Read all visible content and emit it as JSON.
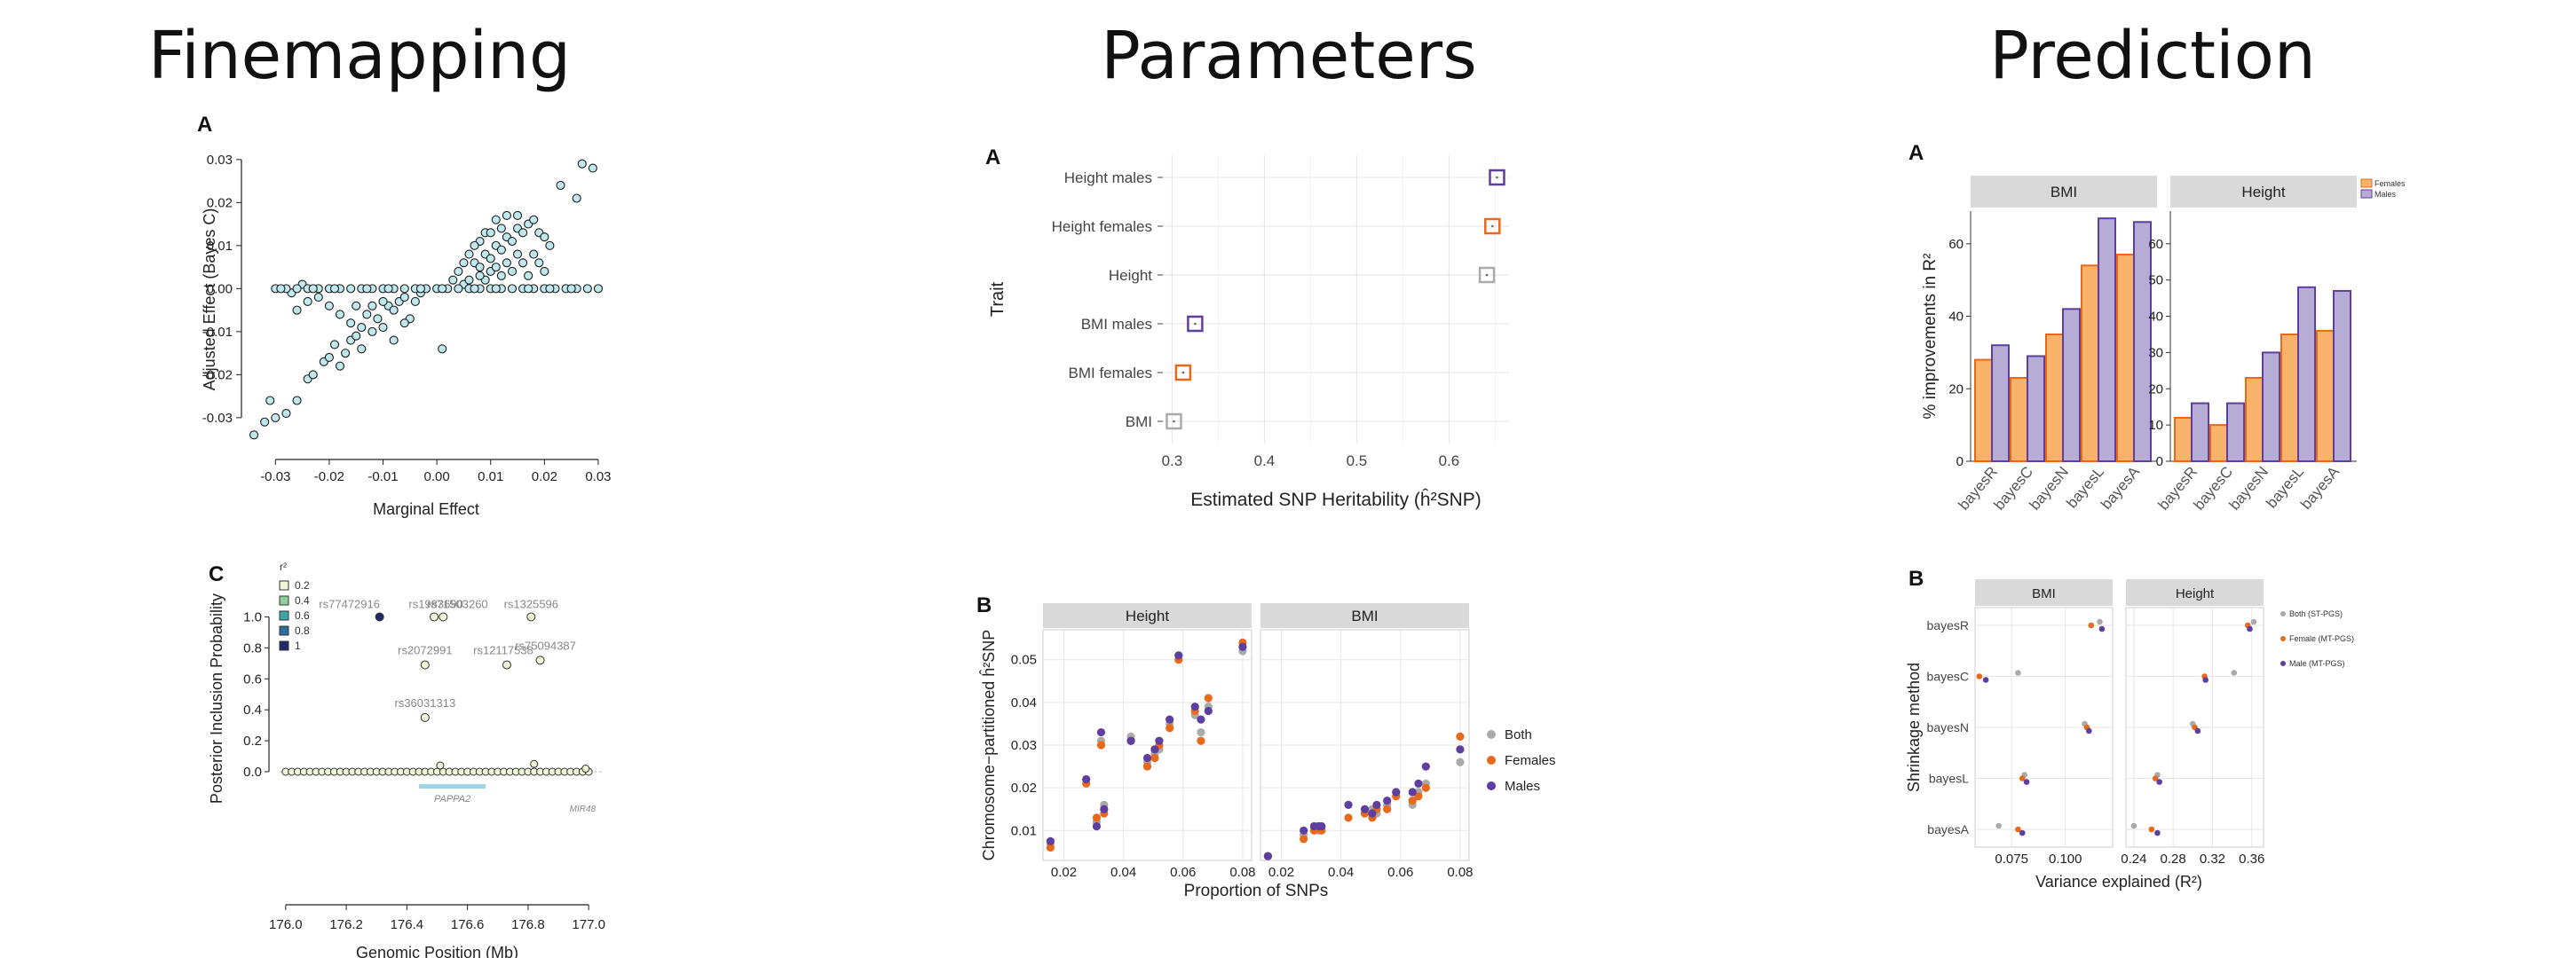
{
  "sections": {
    "finemapping": "Finemapping",
    "parameters": "Parameters",
    "prediction": "Prediction"
  },
  "colors": {
    "both": "#aaaaaa",
    "females": "#e8691a",
    "males": "#5e3e9e",
    "female_fill": "#f9b26a",
    "male_fill": "#b7acd6",
    "strip": "#d9d9d9",
    "grid": "#e6e6e6",
    "scatter_fill": "#bfe9ef",
    "gene": "#9fd4e6"
  },
  "chart_data": [
    {
      "id": "fm_a",
      "type": "scatter",
      "panel": "A",
      "xlabel": "Marginal Effect",
      "ylabel": "Adjusted Effect (Bayes C)",
      "xlim": [
        -0.035,
        0.031
      ],
      "ylim": [
        -0.036,
        0.031
      ],
      "xticks": [
        "-0.03",
        "-0.02",
        "-0.01",
        "0.00",
        "0.01",
        "0.02",
        "0.03"
      ],
      "yticks": [
        "-0.03",
        "-0.02",
        "-0.01",
        "0.00",
        "0.01",
        "0.02",
        "0.03"
      ],
      "points": [
        [
          -0.034,
          -0.034
        ],
        [
          -0.032,
          -0.031
        ],
        [
          -0.031,
          -0.026
        ],
        [
          -0.03,
          -0.03
        ],
        [
          -0.028,
          -0.029
        ],
        [
          -0.026,
          -0.026
        ],
        [
          -0.024,
          -0.021
        ],
        [
          -0.023,
          -0.02
        ],
        [
          -0.021,
          -0.017
        ],
        [
          -0.02,
          -0.016
        ],
        [
          -0.019,
          -0.013
        ],
        [
          -0.018,
          -0.018
        ],
        [
          -0.017,
          -0.015
        ],
        [
          -0.016,
          -0.012
        ],
        [
          -0.015,
          -0.011
        ],
        [
          -0.014,
          -0.009
        ],
        [
          -0.013,
          -0.006
        ],
        [
          -0.012,
          -0.01
        ],
        [
          -0.011,
          -0.007
        ],
        [
          -0.01,
          -0.009
        ],
        [
          -0.009,
          -0.004
        ],
        [
          -0.008,
          -0.005
        ],
        [
          -0.007,
          -0.003
        ],
        [
          -0.006,
          -0.002
        ],
        [
          -0.005,
          -0.007
        ],
        [
          -0.004,
          -0.003
        ],
        [
          -0.003,
          -0.001
        ],
        [
          -0.008,
          -0.012
        ],
        [
          -0.01,
          -0.003
        ],
        [
          -0.006,
          -0.008
        ],
        [
          -0.012,
          -0.004
        ],
        [
          -0.014,
          -0.014
        ],
        [
          -0.016,
          -0.008
        ],
        [
          -0.02,
          -0.004
        ],
        [
          -0.022,
          -0.002
        ],
        [
          -0.024,
          -0.003
        ],
        [
          -0.018,
          -0.006
        ],
        [
          -0.026,
          -0.005
        ],
        [
          -0.025,
          0.001
        ],
        [
          -0.027,
          -0.001
        ],
        [
          -0.015,
          -0.004
        ],
        [
          0.001,
          -0.014
        ],
        [
          0.004,
          0.004
        ],
        [
          0.005,
          0.001
        ],
        [
          0.006,
          0.002
        ],
        [
          0.007,
          0.006
        ],
        [
          0.008,
          0.005
        ],
        [
          0.009,
          0.008
        ],
        [
          0.01,
          0.007
        ],
        [
          0.011,
          0.01
        ],
        [
          0.012,
          0.009
        ],
        [
          0.013,
          0.012
        ],
        [
          0.014,
          0.011
        ],
        [
          0.015,
          0.014
        ],
        [
          0.016,
          0.013
        ],
        [
          0.017,
          0.015
        ],
        [
          0.018,
          0.016
        ],
        [
          0.019,
          0.013
        ],
        [
          0.02,
          0.012
        ],
        [
          0.021,
          0.01
        ],
        [
          0.023,
          0.024
        ],
        [
          0.026,
          0.021
        ],
        [
          0.027,
          0.029
        ],
        [
          0.029,
          0.028
        ],
        [
          0.006,
          0.008
        ],
        [
          0.008,
          0.011
        ],
        [
          0.009,
          0.013
        ],
        [
          0.01,
          0.004
        ],
        [
          0.011,
          0.016
        ],
        [
          0.012,
          0.003
        ],
        [
          0.013,
          0.006
        ],
        [
          0.014,
          0.004
        ],
        [
          0.01,
          0.013
        ],
        [
          0.007,
          0.01
        ],
        [
          0.009,
          0.002
        ],
        [
          0.012,
          0.014
        ],
        [
          0.015,
          0.008
        ],
        [
          0.016,
          0.006
        ],
        [
          0.011,
          0.005
        ],
        [
          0.008,
          0.003
        ],
        [
          0.005,
          0.006
        ],
        [
          0.003,
          0.002
        ],
        [
          0.013,
          0.017
        ],
        [
          0.015,
          0.017
        ],
        [
          0.018,
          0.008
        ],
        [
          0.017,
          0.003
        ],
        [
          0.019,
          0.006
        ],
        [
          0.02,
          0.004
        ],
        [
          -0.03,
          0.0
        ],
        [
          -0.028,
          0.0
        ],
        [
          -0.026,
          0.0
        ],
        [
          -0.024,
          0.0
        ],
        [
          -0.022,
          0.0
        ],
        [
          -0.02,
          0.0
        ],
        [
          -0.018,
          0.0
        ],
        [
          -0.016,
          0.0
        ],
        [
          -0.014,
          0.0
        ],
        [
          -0.012,
          0.0
        ],
        [
          -0.01,
          0.0
        ],
        [
          -0.008,
          0.0
        ],
        [
          -0.006,
          0.0
        ],
        [
          -0.004,
          0.0
        ],
        [
          -0.002,
          0.0
        ],
        [
          0.0,
          0.0
        ],
        [
          0.002,
          0.0
        ],
        [
          0.004,
          0.0
        ],
        [
          0.006,
          0.0
        ],
        [
          0.008,
          0.0
        ],
        [
          0.01,
          0.0
        ],
        [
          0.012,
          0.0
        ],
        [
          0.014,
          0.0
        ],
        [
          0.016,
          0.0
        ],
        [
          0.018,
          0.0
        ],
        [
          0.02,
          0.0
        ],
        [
          0.022,
          0.0
        ],
        [
          0.024,
          0.0
        ],
        [
          0.026,
          0.0
        ],
        [
          0.028,
          0.0
        ],
        [
          0.03,
          0.0
        ],
        [
          -0.029,
          0.0
        ],
        [
          -0.019,
          0.0
        ],
        [
          -0.009,
          0.0
        ],
        [
          0.001,
          0.0
        ],
        [
          0.011,
          0.0
        ],
        [
          0.021,
          0.0
        ],
        [
          0.025,
          0.0
        ],
        [
          -0.023,
          0.0
        ],
        [
          -0.013,
          0.0
        ],
        [
          -0.003,
          0.0
        ],
        [
          0.007,
          0.0
        ],
        [
          0.017,
          0.0
        ]
      ]
    },
    {
      "id": "fm_c",
      "type": "scatter",
      "panel": "C",
      "xlabel": "Genomic Position (Mb)",
      "ylabel": "Posterior Inclusion Probability",
      "xlim": [
        175.98,
        177.02
      ],
      "ylim": [
        0,
        1.06
      ],
      "xticks": [
        "176.0",
        "176.2",
        "176.4",
        "176.6",
        "176.8",
        "177.0"
      ],
      "yticks": [
        "0.0",
        "0.2",
        "0.4",
        "0.6",
        "0.8",
        "1.0"
      ],
      "legend_title": "r²",
      "legend": [
        "0.2",
        "0.4",
        "0.6",
        "0.8",
        "1"
      ],
      "legend_colors": [
        "#eef6d5",
        "#8fcf9c",
        "#3fa6a8",
        "#2c6e9b",
        "#1f2a66"
      ],
      "gene_label": "PAPPA2",
      "gene_range": [
        176.44,
        176.66
      ],
      "other_gene": "MIR48",
      "labelled": [
        {
          "label": "rs77472916",
          "x": 176.31,
          "y": 1.0,
          "c": 4
        },
        {
          "label": "rs1983690",
          "x": 176.49,
          "y": 1.0,
          "c": 0
        },
        {
          "label": "rs71503260",
          "x": 176.52,
          "y": 1.0,
          "c": 0
        },
        {
          "label": "rs1325596",
          "x": 176.81,
          "y": 1.0,
          "c": 0
        },
        {
          "label": "rs2072991",
          "x": 176.46,
          "y": 0.69,
          "c": 0
        },
        {
          "label": "rs12117538",
          "x": 176.73,
          "y": 0.69,
          "c": 0
        },
        {
          "label": "rs75094387",
          "x": 176.84,
          "y": 0.72,
          "c": 0
        },
        {
          "label": "rs36031313",
          "x": 176.46,
          "y": 0.35,
          "c": 0
        }
      ],
      "baseline_x": [
        176.0,
        176.02,
        176.04,
        176.06,
        176.08,
        176.1,
        176.12,
        176.14,
        176.16,
        176.18,
        176.2,
        176.22,
        176.24,
        176.26,
        176.28,
        176.3,
        176.32,
        176.34,
        176.36,
        176.38,
        176.4,
        176.42,
        176.44,
        176.46,
        176.48,
        176.5,
        176.52,
        176.54,
        176.56,
        176.58,
        176.6,
        176.62,
        176.64,
        176.66,
        176.68,
        176.7,
        176.72,
        176.74,
        176.76,
        176.78,
        176.8,
        176.82,
        176.84,
        176.86,
        176.88,
        176.9,
        176.92,
        176.94,
        176.96,
        176.98,
        177.0
      ],
      "small_bumps": [
        [
          176.51,
          0.04
        ],
        [
          176.82,
          0.05
        ],
        [
          176.99,
          0.02
        ]
      ]
    },
    {
      "id": "par_a",
      "type": "scatter",
      "panel": "A",
      "xlabel": "Estimated SNP Heritability (ĥ²SNP)",
      "ylabel": "Trait",
      "xlim": [
        0.29,
        0.665
      ],
      "xticks": [
        "0.3",
        "0.4",
        "0.5",
        "0.6"
      ],
      "xtick_values": [
        0.3,
        0.4,
        0.5,
        0.6
      ],
      "categories": [
        "Height males",
        "Height females",
        "Height",
        "BMI males",
        "BMI females",
        "BMI"
      ],
      "values": [
        0.652,
        0.647,
        0.641,
        0.325,
        0.312,
        0.302
      ],
      "point_color": [
        "males",
        "females",
        "both",
        "males",
        "females",
        "both"
      ]
    },
    {
      "id": "par_b",
      "type": "scatter",
      "panel": "B",
      "xlabel": "Proportion of SNPs",
      "ylabel": "Chromosome−partitioned ĥ²SNP",
      "facets": [
        "Height",
        "BMI"
      ],
      "xlim": [
        0.013,
        0.083
      ],
      "ylim": [
        0.003,
        0.057
      ],
      "xticks": [
        "0.02",
        "0.04",
        "0.06",
        "0.08"
      ],
      "yticks": [
        "0.01",
        "0.02",
        "0.03",
        "0.04",
        "0.05"
      ],
      "legend": [
        "Both",
        "Females",
        "Males"
      ],
      "x": [
        0.0155,
        0.0275,
        0.031,
        0.0325,
        0.0335,
        0.0425,
        0.048,
        0.0505,
        0.052,
        0.0555,
        0.0585,
        0.064,
        0.066,
        0.0685,
        0.08
      ],
      "height": {
        "both": [
          0.007,
          0.022,
          0.012,
          0.031,
          0.016,
          0.032,
          0.026,
          0.028,
          0.029,
          0.035,
          0.051,
          0.037,
          0.033,
          0.039,
          0.052
        ],
        "females": [
          0.006,
          0.021,
          0.013,
          0.03,
          0.014,
          0.031,
          0.025,
          0.027,
          0.03,
          0.034,
          0.05,
          0.038,
          0.031,
          0.041,
          0.054
        ],
        "males": [
          0.0075,
          0.022,
          0.011,
          0.033,
          0.015,
          0.031,
          0.027,
          0.029,
          0.031,
          0.036,
          0.051,
          0.039,
          0.036,
          0.038,
          0.053
        ]
      },
      "bmi": {
        "both": [
          0.004,
          0.009,
          0.011,
          0.01,
          0.011,
          0.016,
          0.014,
          0.015,
          0.014,
          0.016,
          0.019,
          0.016,
          0.019,
          0.021,
          0.026
        ],
        "females": [
          0.004,
          0.008,
          0.01,
          0.011,
          0.01,
          0.013,
          0.014,
          0.013,
          0.015,
          0.015,
          0.018,
          0.017,
          0.018,
          0.02,
          0.032
        ],
        "males": [
          0.004,
          0.01,
          0.011,
          0.011,
          0.011,
          0.016,
          0.015,
          0.014,
          0.016,
          0.017,
          0.019,
          0.019,
          0.021,
          0.025,
          0.029
        ]
      }
    },
    {
      "id": "pred_a",
      "type": "bar",
      "panel": "A",
      "ylabel": "% improvements in R²",
      "facets": [
        "BMI",
        "Height"
      ],
      "categories": [
        "bayesR",
        "bayesC",
        "bayesN",
        "bayesL",
        "bayesA"
      ],
      "ylim": [
        0,
        69
      ],
      "yticks": [
        "0",
        "20",
        "40",
        "60"
      ],
      "yticks_right": [
        "0",
        "10",
        "20",
        "30",
        "40",
        "50",
        "60"
      ],
      "legend": [
        "Females",
        "Males"
      ],
      "series": [
        {
          "name": "Females",
          "facet": "BMI",
          "values": [
            28,
            23,
            35,
            54,
            57
          ]
        },
        {
          "name": "Males",
          "facet": "BMI",
          "values": [
            32,
            29,
            42,
            67,
            66
          ]
        },
        {
          "name": "Females",
          "facet": "Height",
          "values": [
            12,
            10,
            23,
            35,
            36
          ]
        },
        {
          "name": "Males",
          "facet": "Height",
          "values": [
            16,
            16,
            30,
            48,
            47
          ]
        }
      ]
    },
    {
      "id": "pred_b",
      "type": "scatter",
      "panel": "B",
      "xlabel": "Variance explained (R²)",
      "ylabel": "Shrinkage method",
      "facets": [
        "BMI",
        "Height"
      ],
      "categories": [
        "bayesR",
        "bayesC",
        "bayesN",
        "bayesL",
        "bayesA"
      ],
      "legend": [
        "Both (ST-PGS)",
        "Female (MT-PGS)",
        "Male (MT-PGS)"
      ],
      "bmi_xlim": [
        0.058,
        0.122
      ],
      "bmi_xticks": [
        "0.075",
        "0.100"
      ],
      "bmi_xtick_values": [
        0.075,
        0.1
      ],
      "height_xlim": [
        0.232,
        0.372
      ],
      "height_xticks": [
        "0.24",
        "0.28",
        "0.32",
        "0.36"
      ],
      "height_xtick_values": [
        0.24,
        0.28,
        0.32,
        0.36
      ],
      "bmi": {
        "both": [
          0.116,
          0.078,
          0.109,
          0.081,
          0.069
        ],
        "females": [
          0.112,
          0.06,
          0.11,
          0.08,
          0.078
        ],
        "males": [
          0.117,
          0.063,
          0.111,
          0.082,
          0.08
        ]
      },
      "height": {
        "both": [
          0.362,
          0.342,
          0.3,
          0.264,
          0.24
        ],
        "females": [
          0.356,
          0.312,
          0.302,
          0.262,
          0.258
        ],
        "males": [
          0.358,
          0.313,
          0.305,
          0.266,
          0.264
        ]
      }
    }
  ]
}
